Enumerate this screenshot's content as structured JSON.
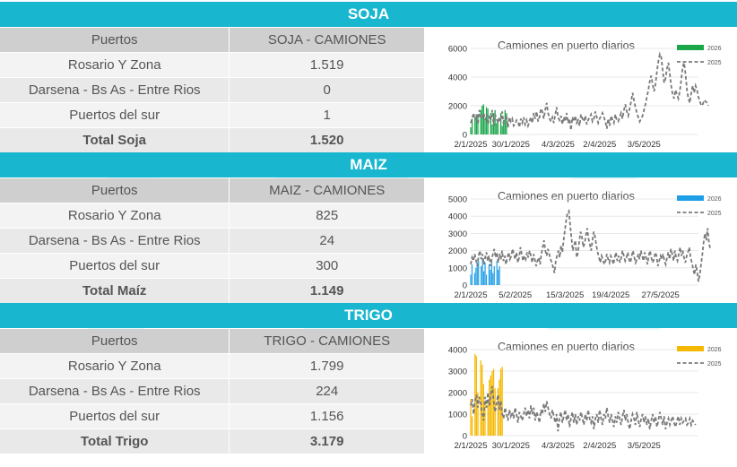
{
  "sections": [
    {
      "title": "SOJA",
      "header": {
        "col1": "Puertos",
        "col2": "SOJA - CAMIONES"
      },
      "rows": [
        {
          "puerto": "Rosario Y Zona",
          "valor": "1.519"
        },
        {
          "puerto": "Darsena - Bs As - Entre Rios",
          "valor": "0"
        },
        {
          "puerto": "Puertos del sur",
          "valor": "1"
        }
      ],
      "total": {
        "label": "Total Soja",
        "valor": "1.520"
      }
    },
    {
      "title": "MAIZ",
      "header": {
        "col1": "Puertos",
        "col2": "MAIZ - CAMIONES"
      },
      "rows": [
        {
          "puerto": "Rosario Y Zona",
          "valor": "825"
        },
        {
          "puerto": "Darsena - Bs As - Entre Rios",
          "valor": "24"
        },
        {
          "puerto": "Puertos del sur",
          "valor": "300"
        }
      ],
      "total": {
        "label": "Total Maíz",
        "valor": "1.149"
      }
    },
    {
      "title": "TRIGO",
      "header": {
        "col1": "Puertos",
        "col2": "TRIGO - CAMIONES"
      },
      "rows": [
        {
          "puerto": "Rosario Y Zona",
          "valor": "1.799"
        },
        {
          "puerto": "Darsena - Bs As - Entre Rios",
          "valor": "224"
        },
        {
          "puerto": "Puertos del sur",
          "valor": "1.156"
        }
      ],
      "total": {
        "label": "Total Trigo",
        "valor": "3.179"
      }
    }
  ],
  "chart_data": [
    {
      "type": "bar+line",
      "title": "Camiones en puerto diarios",
      "bar_color": "#1aa74a",
      "line_color": "#7a7a7a",
      "yticks": [
        0,
        2000,
        4000,
        6000
      ],
      "ylim": [
        0,
        6000
      ],
      "xlim": [
        "2025-01-02",
        "2025-06-10"
      ],
      "xticks": [
        "2/1/2025",
        "30/1/2025",
        "4/3/2025",
        "2/4/2025",
        "3/5/2025"
      ],
      "xtick_dates": [
        "2025-01-02",
        "2025-01-30",
        "2025-03-04",
        "2025-04-02",
        "2025-05-03"
      ],
      "legend": [
        "2026",
        "2025"
      ],
      "series": [
        {
          "name": "2026",
          "kind": "bar",
          "start_date": "2025-01-02",
          "values": [
            500,
            1100,
            0,
            1100,
            1200,
            1400,
            0,
            1700,
            2000,
            2100,
            1000,
            1900,
            1800,
            0,
            1500,
            700,
            1500,
            1700,
            800,
            1000,
            0,
            1500,
            600,
            1000,
            1700,
            1500
          ]
        },
        {
          "name": "2025",
          "kind": "line",
          "start_date": "2025-01-02",
          "values": [
            800,
            1100,
            1500,
            1000,
            1400,
            700,
            1700,
            1200,
            1100,
            1500,
            1000,
            1400,
            700,
            1200,
            1000,
            1700,
            600,
            1400,
            1100,
            800,
            1200,
            900,
            1600,
            700,
            1000,
            1300,
            500,
            1200,
            900,
            1100,
            600,
            700,
            1000,
            900,
            500,
            1100,
            800,
            1200,
            700,
            1000,
            600,
            900,
            1200,
            800,
            1500,
            1100,
            1600,
            900,
            1200,
            1800,
            1600,
            1100,
            1700,
            2200,
            1500,
            1100,
            900,
            1200,
            800,
            1400,
            1900,
            1200,
            1000,
            1300,
            700,
            1200,
            900,
            1500,
            800,
            1100,
            300,
            1200,
            900,
            1300,
            800,
            1000,
            600,
            1400,
            1100,
            900,
            1300,
            700,
            1000,
            1200,
            1400,
            900,
            1100,
            1600,
            1200,
            800,
            1100,
            1300,
            1500,
            1200,
            900,
            400,
            1100,
            600,
            1300,
            1000,
            800,
            1400,
            1000,
            900,
            1200,
            1500,
            1100,
            1700,
            2100,
            1600,
            1300,
            1800,
            2300,
            2900,
            2400,
            1900,
            1500,
            1200,
            900,
            1100,
            1300,
            1700,
            2100,
            2600,
            3100,
            3700,
            4100,
            3500,
            3000,
            3500,
            4400,
            5100,
            5600,
            5400,
            4500,
            3600,
            3900,
            4600,
            5000,
            4200,
            3400,
            2800,
            2500,
            3100,
            2800,
            2500,
            3000,
            3800,
            4700,
            5000,
            4200,
            3100,
            2500,
            2200,
            2900,
            3400,
            2900,
            3400,
            3100,
            2600,
            2300,
            2000,
            2100,
            2400,
            2300,
            2200,
            2000
          ]
        }
      ]
    },
    {
      "type": "bar+line",
      "title": "Camiones en puerto diarios",
      "bar_color": "#1e9ee6",
      "line_color": "#7a7a7a",
      "yticks": [
        0,
        1000,
        2000,
        3000,
        4000,
        5000
      ],
      "ylim": [
        0,
        5000
      ],
      "xlim": [
        "2025-01-02",
        "2025-06-25"
      ],
      "xticks": [
        "2/1/2025",
        "5/2/2025",
        "15/3/2025",
        "19/4/2025",
        "27/5/2025"
      ],
      "xtick_dates": [
        "2025-01-02",
        "2025-02-05",
        "2025-03-15",
        "2025-04-19",
        "2025-05-27"
      ],
      "legend": [
        "2026",
        "2025"
      ],
      "series": [
        {
          "name": "2026",
          "kind": "bar",
          "start_date": "2025-01-02",
          "values": [
            600,
            1200,
            0,
            700,
            1000,
            1300,
            1400,
            0,
            1100,
            1500,
            800,
            1300,
            600,
            0,
            1200,
            900,
            1500,
            700,
            1100,
            0,
            1400,
            900,
            1100
          ]
        },
        {
          "name": "2025",
          "kind": "line",
          "start_date": "2025-01-02",
          "values": [
            1200,
            1600,
            1400,
            1800,
            1500,
            1100,
            1700,
            2000,
            1500,
            1800,
            1200,
            1600,
            1900,
            1400,
            1700,
            1100,
            1500,
            1800,
            2100,
            1600,
            1900,
            1300,
            1800,
            1500,
            2000,
            1400,
            1700,
            1200,
            1600,
            1900,
            1500,
            1700,
            2100,
            1800,
            1500,
            1900,
            1300,
            1600,
            2200,
            1800,
            1400,
            1700,
            1500,
            1900,
            1600,
            2000,
            1700,
            1300,
            1800,
            1500,
            1100,
            1400,
            1600,
            1200,
            1800,
            2200,
            2600,
            2000,
            1700,
            2100,
            1800,
            1500,
            1300,
            1000,
            700,
            1400,
            1700,
            2000,
            1600,
            2300,
            1900,
            2600,
            3200,
            3800,
            4200,
            4300,
            3500,
            2700,
            2000,
            2300,
            2600,
            1600,
            1900,
            2600,
            3100,
            2800,
            2200,
            2400,
            2900,
            3300,
            2700,
            2400,
            2000,
            2600,
            3100,
            2800,
            2300,
            1900,
            1600,
            1300,
            1700,
            1500,
            1200,
            1400,
            1800,
            1500,
            1300,
            1700,
            1500,
            1200,
            1600,
            1900,
            1400,
            1700,
            1300,
            1600,
            2000,
            1700,
            1400,
            1600,
            1900,
            1500,
            1300,
            1700,
            2000,
            1600,
            1300,
            1500,
            1800,
            1500,
            2000,
            1700,
            1400,
            1900,
            1600,
            1200,
            1700,
            2000,
            1600,
            1300,
            1500,
            1900,
            1700,
            1100,
            1400,
            1700,
            1500,
            1800,
            1400,
            1200,
            1600,
            1900,
            1500,
            2100,
            1800,
            1400,
            2000,
            1600,
            1400,
            1800,
            2200,
            1700,
            2000,
            1600,
            1300,
            1700,
            1900,
            2200,
            1600,
            1300,
            900,
            600,
            1200,
            800,
            200,
            600,
            1200,
            1800,
            2500,
            3000,
            2600,
            3300,
            2500,
            2100
          ]
        }
      ]
    },
    {
      "type": "bar+line",
      "title": "Camiones en puerto diarios",
      "bar_color": "#f5b800",
      "line_color": "#7a7a7a",
      "yticks": [
        0,
        1000,
        2000,
        3000,
        4000
      ],
      "ylim": [
        0,
        4000
      ],
      "xlim": [
        "2025-01-02",
        "2025-06-10"
      ],
      "xticks": [
        "2/1/2025",
        "30/1/2025",
        "4/3/2025",
        "2/4/2025",
        "3/5/2025"
      ],
      "xtick_dates": [
        "2025-01-02",
        "2025-01-30",
        "2025-03-04",
        "2025-04-02",
        "2025-05-03"
      ],
      "legend": [
        "2026",
        "2025"
      ],
      "series": [
        {
          "name": "2026",
          "kind": "bar",
          "start_date": "2025-01-02",
          "values": [
            1700,
            900,
            0,
            3800,
            3700,
            2000,
            0,
            3500,
            3300,
            2400,
            1500,
            0,
            1600,
            2600,
            2800,
            3000,
            3100,
            2200,
            0,
            2200,
            2600,
            3100,
            3200
          ]
        },
        {
          "name": "2025",
          "kind": "line",
          "start_date": "2025-01-02",
          "values": [
            1400,
            1700,
            1000,
            1600,
            1900,
            1300,
            1800,
            1500,
            1000,
            700,
            1800,
            1300,
            2000,
            1400,
            1900,
            2300,
            1600,
            1100,
            1500,
            1900,
            1200,
            1600,
            1000,
            800,
            1300,
            1000,
            700,
            1200,
            900,
            1100,
            800,
            1300,
            1000,
            600,
            1100,
            900,
            700,
            1000,
            1300,
            900,
            1200,
            800,
            1400,
            1000,
            1300,
            700,
            1100,
            900,
            600,
            1200,
            1000,
            1500,
            1100,
            1600,
            1300,
            1000,
            800,
            1200,
            900,
            600,
            1000,
            200,
            800,
            1100,
            600,
            900,
            1200,
            700,
            1000,
            400,
            800,
            1100,
            600,
            1000,
            500,
            900,
            700,
            1100,
            800,
            500,
            1000,
            700,
            1200,
            800,
            600,
            900,
            300,
            800,
            1000,
            600,
            1200,
            800,
            500,
            1000,
            800,
            1300,
            900,
            600,
            1000,
            700,
            400,
            900,
            600,
            1100,
            800,
            500,
            900,
            1200,
            700,
            1000,
            600,
            300,
            700,
            1000,
            800,
            500,
            1100,
            700,
            400,
            800,
            1000,
            600,
            900,
            500,
            800,
            300,
            700,
            1000,
            600,
            900,
            400,
            700,
            1100,
            800,
            500,
            900,
            300,
            600,
            800,
            500,
            700,
            900,
            600,
            400,
            700,
            900,
            500,
            800,
            600,
            700,
            800,
            500,
            600,
            800,
            500,
            700,
            600,
            500
          ]
        }
      ]
    }
  ]
}
